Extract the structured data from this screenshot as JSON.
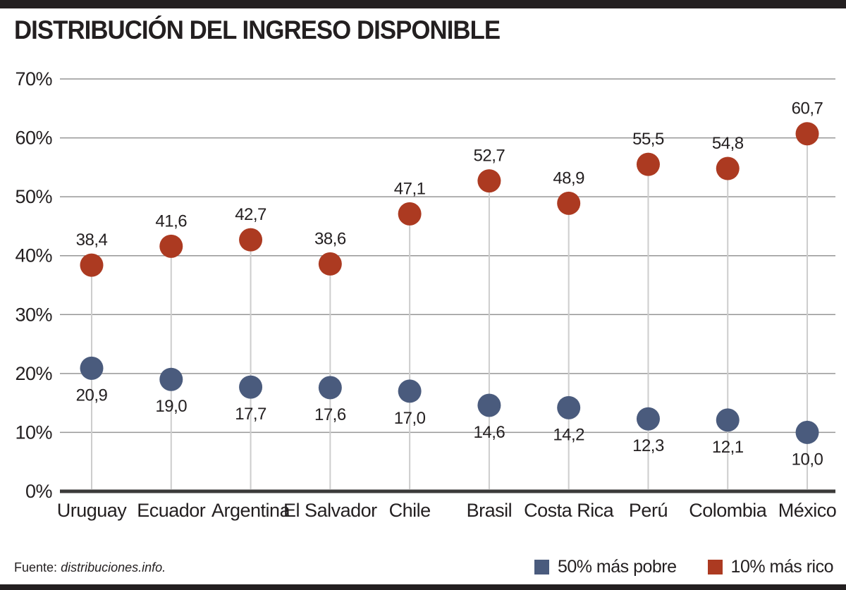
{
  "title": "DISTRIBUCIÓN DEL INGRESO DISPONIBLE",
  "footer": {
    "source_prefix": "Fuente:",
    "source_name": "distribuciones.info."
  },
  "colors": {
    "poor_blue": "#4a5b7d",
    "rich_red": "#ac3a21",
    "near_black": "#231f20",
    "h_gridline": "#969696",
    "stem_gray": "#cdcdcd",
    "axis_dark": "#3b3a39"
  },
  "legend": {
    "items": [
      {
        "label": "50% más pobre",
        "color": "#4a5b7d"
      },
      {
        "label": "10% más rico",
        "color": "#ac3a21"
      }
    ]
  },
  "chart_data": {
    "type": "scatter",
    "title": "DISTRIBUCIÓN DEL INGRESO DISPONIBLE",
    "categories": [
      "Uruguay",
      "Ecuador",
      "Argentina",
      "El Salvador",
      "Chile",
      "Brasil",
      "Costa Rica",
      "Perú",
      "Colombia",
      "México"
    ],
    "series": [
      {
        "name": "50% más pobre",
        "color": "#4a5b7d",
        "values": [
          20.9,
          19.0,
          17.7,
          17.6,
          17.0,
          14.6,
          14.2,
          12.3,
          12.1,
          10.0
        ],
        "display_values": [
          "20,9",
          "19,0",
          "17,7",
          "17,6",
          "17,0",
          "14,6",
          "14,2",
          "12,3",
          "12,1",
          "10,0"
        ],
        "label_position": "below"
      },
      {
        "name": "10% más rico",
        "color": "#ac3a21",
        "values": [
          38.4,
          41.6,
          42.7,
          38.6,
          47.1,
          52.7,
          48.9,
          55.5,
          54.8,
          60.7
        ],
        "display_values": [
          "38,4",
          "41,6",
          "42,7",
          "38,6",
          "47,1",
          "52,7",
          "48,9",
          "55,5",
          "54,8",
          "60,7"
        ],
        "label_position": "above"
      }
    ],
    "y_ticks": [
      {
        "value": 70,
        "label": "70%"
      },
      {
        "value": 60,
        "label": "60%"
      },
      {
        "value": 50,
        "label": "50%"
      },
      {
        "value": 40,
        "label": "40%"
      },
      {
        "value": 30,
        "label": "30%"
      },
      {
        "value": 20,
        "label": "20%"
      },
      {
        "value": 10,
        "label": "10%"
      },
      {
        "value": 0,
        "label": "0%"
      }
    ],
    "xlabel": "",
    "ylabel": "",
    "ylim": [
      0,
      70
    ],
    "grid": true,
    "marker": "circle-lollipop",
    "legend_position": "bottom-right",
    "decimal_separator": ","
  }
}
